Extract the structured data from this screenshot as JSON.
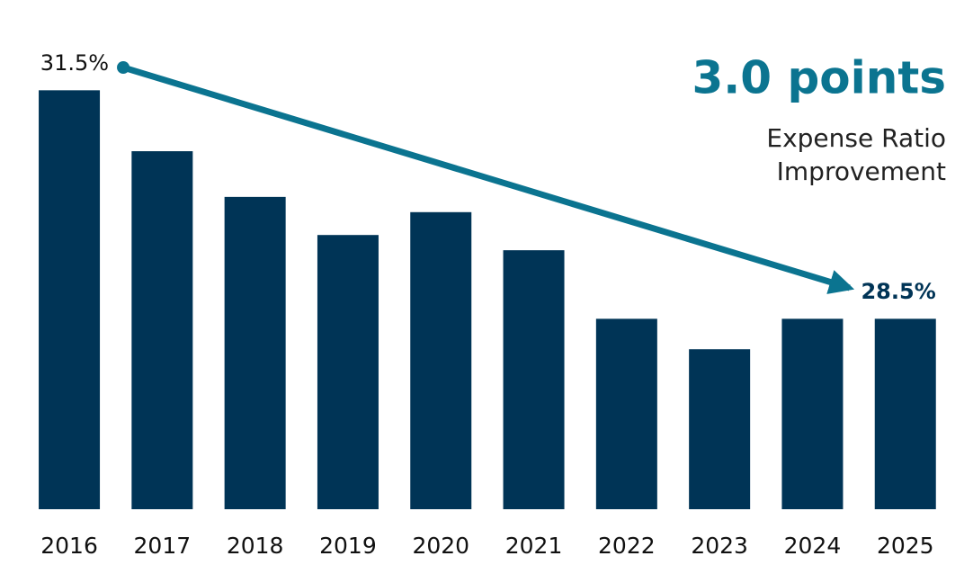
{
  "chart_data": {
    "type": "bar",
    "categories": [
      "2016",
      "2017",
      "2018",
      "2019",
      "2020",
      "2021",
      "2022",
      "2023",
      "2024",
      "2025"
    ],
    "values": [
      31.5,
      30.7,
      30.1,
      29.6,
      29.9,
      29.4,
      28.5,
      28.1,
      28.5,
      28.5
    ],
    "value_labels": [
      "31.5%",
      null,
      null,
      null,
      null,
      null,
      null,
      null,
      null,
      "28.5%"
    ],
    "color": "#003456",
    "ylim": [
      26,
      32
    ],
    "annotation": {
      "headline": "3.0 points",
      "text": [
        "Expense Ratio",
        "Improvement"
      ],
      "color": "#0b7490"
    }
  }
}
